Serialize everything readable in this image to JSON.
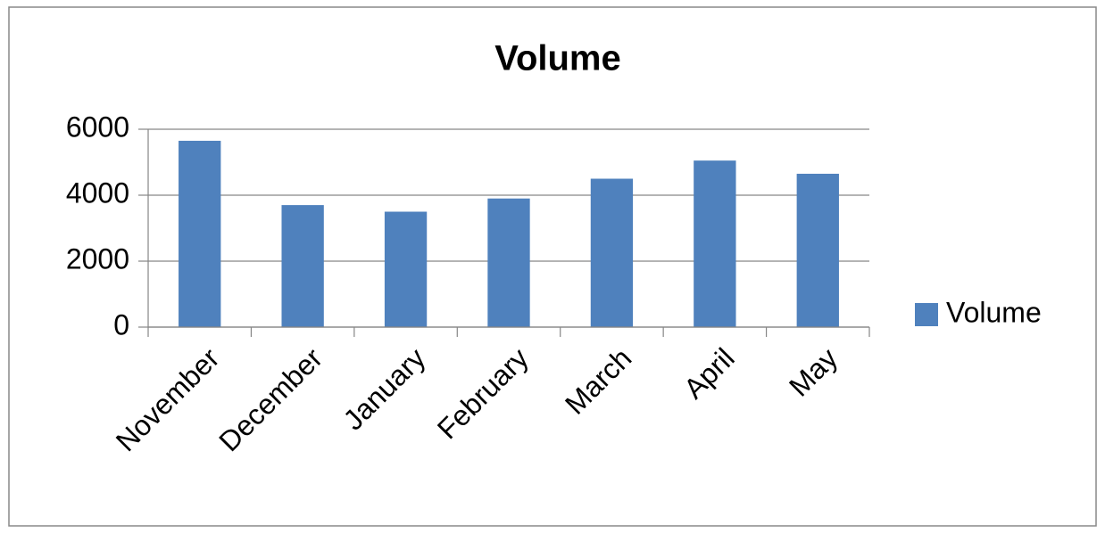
{
  "chart_data": {
    "type": "bar",
    "title": "Volume",
    "categories": [
      "November",
      "December",
      "January",
      "February",
      "March",
      "April",
      "May"
    ],
    "series": [
      {
        "name": "Volume",
        "color": "#4f81bd",
        "values": [
          5650,
          3700,
          3500,
          3900,
          4500,
          5050,
          4650
        ]
      }
    ],
    "ylim": [
      0,
      6000
    ],
    "yticks": [
      0,
      2000,
      4000,
      6000
    ],
    "grid": true,
    "legend": "right"
  }
}
